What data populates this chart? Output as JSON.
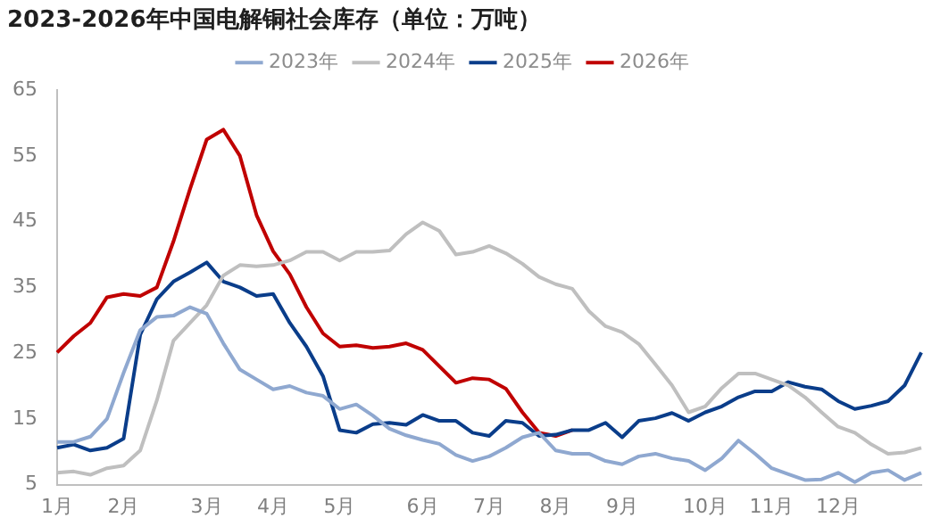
{
  "chart_data": {
    "type": "line",
    "title": "2023-2026年中国电解铜社会库存（单位：万吨）",
    "categories": [
      "1月",
      null,
      null,
      null,
      "2月",
      null,
      null,
      null,
      null,
      "3月",
      null,
      null,
      null,
      "4月",
      null,
      null,
      null,
      "5月",
      null,
      null,
      null,
      null,
      "6月",
      null,
      null,
      null,
      "7月",
      null,
      null,
      null,
      "8月",
      null,
      null,
      null,
      "9月",
      null,
      null,
      null,
      null,
      "10月",
      null,
      null,
      null,
      "11月",
      null,
      null,
      null,
      "12月",
      null,
      null,
      null,
      null,
      null
    ],
    "series": [
      {
        "name": "2023年",
        "color": "#8fa8d0",
        "values": [
          11.5,
          11.5,
          12.3,
          15,
          22,
          28.5,
          30.5,
          30.7,
          32,
          31,
          26.5,
          22.5,
          21,
          19.5,
          20,
          19,
          18.5,
          16.5,
          17.2,
          15.5,
          13.5,
          12.5,
          11.8,
          11.2,
          9.5,
          8.6,
          9.3,
          10.6,
          12.2,
          12.9,
          10.2,
          9.7,
          9.7,
          8.6,
          8.1,
          9.3,
          9.7,
          9,
          8.6,
          7.2,
          9,
          11.7,
          9.7,
          7.5,
          6.6,
          5.7,
          5.8,
          6.8,
          5.4,
          6.8,
          7.2,
          5.7,
          6.8
        ]
      },
      {
        "name": "2024年",
        "color": "#bfbfbf",
        "values": [
          6.8,
          7,
          6.5,
          7.5,
          7.9,
          10.2,
          17.8,
          26.9,
          29.6,
          32.3,
          36.8,
          38.4,
          38.2,
          38.4,
          39.1,
          40.4,
          40.4,
          39.1,
          40.4,
          40.4,
          40.6,
          43.1,
          44.9,
          43.6,
          40,
          40.4,
          41.3,
          40.2,
          38.6,
          36.6,
          35.5,
          34.8,
          31.4,
          29.1,
          28.2,
          26.4,
          23.3,
          20.1,
          16,
          16.9,
          19.7,
          21.9,
          21.9,
          21,
          20.1,
          18.3,
          16,
          13.8,
          12.9,
          11.1,
          9.7,
          9.9,
          10.6
        ]
      },
      {
        "name": "2025年",
        "color": "#0a3d8a",
        "values": [
          10.6,
          11.1,
          10.2,
          10.6,
          12,
          27.8,
          33.2,
          35.9,
          37.3,
          38.8,
          35.9,
          35,
          33.7,
          34,
          29.6,
          26,
          21.5,
          13.3,
          12.9,
          14.2,
          14.4,
          14.1,
          15.6,
          14.7,
          14.7,
          12.9,
          12.4,
          14.7,
          14.4,
          12.4,
          12.6,
          13.3,
          13.3,
          14.4,
          12.2,
          14.7,
          15.1,
          15.9,
          14.7,
          16,
          16.9,
          18.3,
          19.2,
          19.2,
          20.6,
          19.9,
          19.5,
          17.7,
          16.5,
          17,
          17.7,
          20.1,
          25.1
        ]
      },
      {
        "name": "2026年",
        "color": "#c00000",
        "values": [
          25.1,
          27.6,
          29.6,
          33.5,
          34,
          33.7,
          35,
          42,
          50,
          57.5,
          59,
          55,
          46,
          40.5,
          37,
          32,
          28,
          26,
          26.2,
          25.8,
          26,
          26.5,
          25.5,
          23,
          20.5,
          21.2,
          21,
          19.6,
          16,
          12.9,
          12.4,
          13.3,
          null,
          null,
          null,
          null,
          null,
          null,
          null,
          null,
          null,
          null,
          null,
          null,
          null,
          null,
          null,
          null,
          null,
          null,
          null,
          null,
          null
        ]
      }
    ],
    "ylim": [
      5,
      65
    ],
    "yticks": [
      5,
      15,
      25,
      35,
      45,
      55,
      65
    ],
    "grid": false,
    "legend": "top",
    "marker": "none",
    "line_style": "solid"
  }
}
